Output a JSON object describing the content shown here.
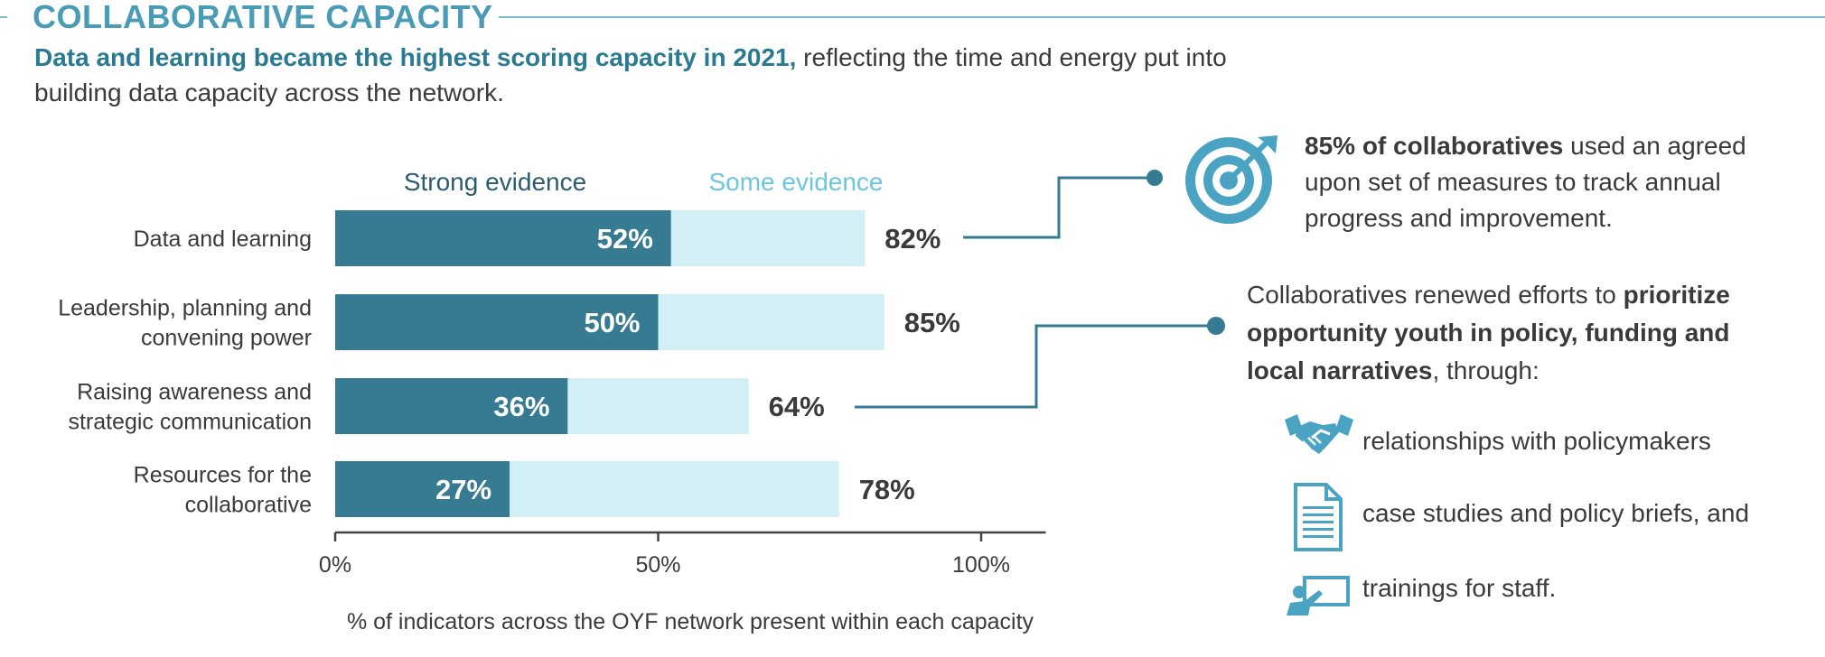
{
  "header": {
    "title": "COLLABORATIVE CAPACITY"
  },
  "intro": {
    "bold": "Data and learning became the highest scoring capacity in 2021,",
    "rest": " reflecting the time and energy put into building data capacity across the network."
  },
  "chart_data": {
    "type": "bar",
    "orientation": "horizontal",
    "stacked": true,
    "categories": [
      [
        "Data and learning"
      ],
      [
        "Leadership, planning and",
        "convening power"
      ],
      [
        "Raising awareness and",
        "strategic communication"
      ],
      [
        "Resources for the",
        "collaborative"
      ]
    ],
    "series": [
      {
        "name": "Strong evidence",
        "values": [
          52,
          50,
          36,
          27
        ],
        "labels": [
          "52%",
          "50%",
          "36%",
          "27%"
        ],
        "color": "#377b92"
      },
      {
        "name": "Some evidence",
        "values": [
          30,
          35,
          28,
          51
        ],
        "color": "#d3eff6"
      }
    ],
    "totals": [
      82,
      85,
      64,
      78
    ],
    "total_labels": [
      "82%",
      "85%",
      "64%",
      "78%"
    ],
    "xlim": [
      0,
      110
    ],
    "xticks": [
      0,
      50,
      100
    ],
    "xtick_labels": [
      "0%",
      "50%",
      "100%"
    ],
    "xlabel": "% of indicators across the OYF network present within each capacity",
    "legend_position": "top",
    "grid": false
  },
  "callouts": {
    "measures": {
      "bold": "85% of collaboratives",
      "rest": " used an agreed upon set of measures to track annual progress and improvement.",
      "icon": "target-icon"
    },
    "prioritize": {
      "lead": "Collaboratives renewed efforts to ",
      "bold": "prioritize opportunity youth in policy, funding and local narratives",
      "tail": ", through:"
    },
    "items": [
      {
        "icon": "handshake-icon",
        "label": "relationships with policymakers"
      },
      {
        "icon": "document-icon",
        "label": "case studies and policy briefs, and"
      },
      {
        "icon": "presentation-icon",
        "label": "trainings for staff."
      }
    ]
  },
  "colors": {
    "accent": "#4a9bb5",
    "dark_bar": "#377b92",
    "light_bar": "#d3eff6",
    "connector": "#377b92",
    "icon": "#4aa3c2"
  }
}
